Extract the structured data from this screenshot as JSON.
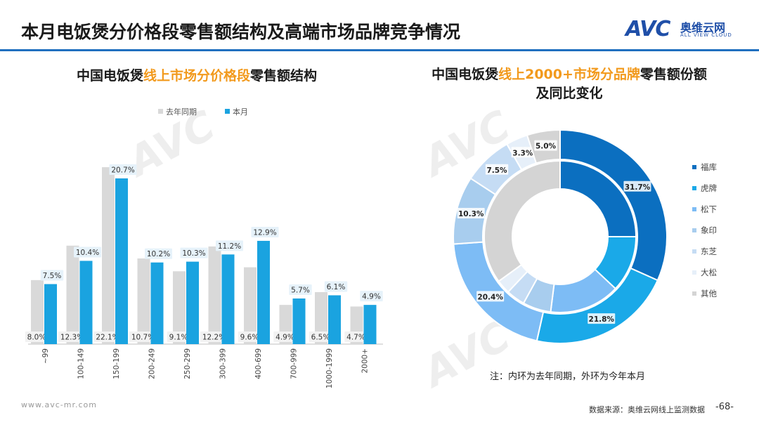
{
  "header": {
    "title": "本月电饭煲分价格段零售额结构及高端市场品牌竞争情况",
    "logo_mark": "AVC",
    "logo_cn": "奥维云网",
    "logo_en": "ALL VIEW CLOUD"
  },
  "left_chart": {
    "title_pre": "中国电饭煲",
    "title_hl": "线上市场分价格段",
    "title_post": "零售额结构"
  },
  "right_chart": {
    "title_pre": "中国电饭煲",
    "title_hl": "线上2000+市场分品牌",
    "title_post": "零售额份额及同比变化"
  },
  "chart_data": [
    {
      "type": "bar",
      "title": "中国电饭煲线上市场分价格段零售额结构",
      "categories": [
        "~99",
        "100-149",
        "150-199",
        "200-249",
        "250-299",
        "300-399",
        "400-699",
        "700-999",
        "1000-1999",
        "2000+"
      ],
      "series": [
        {
          "name": "去年同期",
          "values": [
            8.0,
            12.3,
            22.1,
            10.7,
            9.1,
            12.2,
            9.6,
            4.9,
            6.5,
            4.7
          ],
          "labels": [
            "8.0%",
            "12.3%",
            "22.1%",
            "10.7%",
            "9.1%",
            "12.2%",
            "9.6%",
            "4.9%",
            "6.5%",
            "4.7%"
          ],
          "color": "#d9d9d9"
        },
        {
          "name": "本月",
          "values": [
            7.5,
            10.4,
            20.7,
            10.2,
            10.3,
            11.2,
            12.9,
            5.7,
            6.1,
            4.9
          ],
          "labels": [
            "7.5%",
            "10.4%",
            "20.7%",
            "10.2%",
            "10.3%",
            "11.2%",
            "12.9%",
            "5.7%",
            "6.1%",
            "4.9%"
          ],
          "color": "#1aa3e0"
        }
      ],
      "ylim": [
        0,
        25
      ],
      "legend": "top-left"
    },
    {
      "type": "pie",
      "subtype": "donut",
      "title": "中国电饭煲线上2000+市场分品牌零售额份额及同比变化",
      "categories": [
        "福库",
        "虎牌",
        "松下",
        "象印",
        "东芝",
        "大松",
        "其他"
      ],
      "colors": [
        "#0b6fc0",
        "#1aa9e8",
        "#7dbcf5",
        "#a8cdee",
        "#c5dcf4",
        "#e6eff9",
        "#d4d4d4"
      ],
      "outer": {
        "name": "本月",
        "values": [
          31.7,
          21.8,
          20.4,
          10.3,
          7.5,
          3.3,
          5.0
        ],
        "labels": [
          "31.7%",
          "21.8%",
          "20.4%",
          "10.3%",
          "7.5%",
          "3.3%",
          "5.0%"
        ]
      },
      "inner": {
        "name": "去年同期",
        "values": [
          25.0,
          12.0,
          15.0,
          6.0,
          4.0,
          3.0,
          35.0
        ]
      },
      "legend": "right"
    }
  ],
  "note": "注：内环为去年同期，外环为今年本月",
  "footer": {
    "url": "www.avc-mr.com",
    "source": "数据来源：奥维云网线上监测数据",
    "page": "-68-"
  },
  "watermark": {
    "text": "AVC"
  }
}
